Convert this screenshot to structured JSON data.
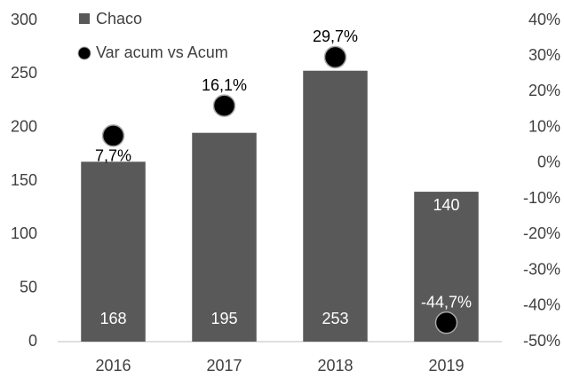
{
  "chart_data": {
    "type": "bar",
    "categories": [
      "2016",
      "2017",
      "2018",
      "2019"
    ],
    "series": [
      {
        "name": "Chaco",
        "type": "bar",
        "color": "#595959",
        "values": [
          168,
          195,
          253,
          140
        ]
      },
      {
        "name": "Var acum vs Acum",
        "type": "scatter",
        "axis": "y2",
        "color": "#000000",
        "values": [
          7.7,
          16.1,
          29.7,
          -44.7
        ],
        "value_labels": [
          "7,7%",
          "16,1%",
          "29,7%",
          "-44,7%"
        ]
      }
    ],
    "ylim": [
      0,
      300
    ],
    "yticks": [
      0,
      50,
      100,
      150,
      200,
      250,
      300
    ],
    "y2lim": [
      -50,
      40
    ],
    "y2ticks": [
      {
        "value": -50,
        "label": "-50%"
      },
      {
        "value": -40,
        "label": "-40%"
      },
      {
        "value": -30,
        "label": "-30%"
      },
      {
        "value": -20,
        "label": "-20%"
      },
      {
        "value": -10,
        "label": "-10%"
      },
      {
        "value": 0,
        "label": "0%"
      },
      {
        "value": 10,
        "label": "10%"
      },
      {
        "value": 20,
        "label": "20%"
      },
      {
        "value": 30,
        "label": "30%"
      },
      {
        "value": 40,
        "label": "40%"
      }
    ],
    "legend": "top-left"
  }
}
